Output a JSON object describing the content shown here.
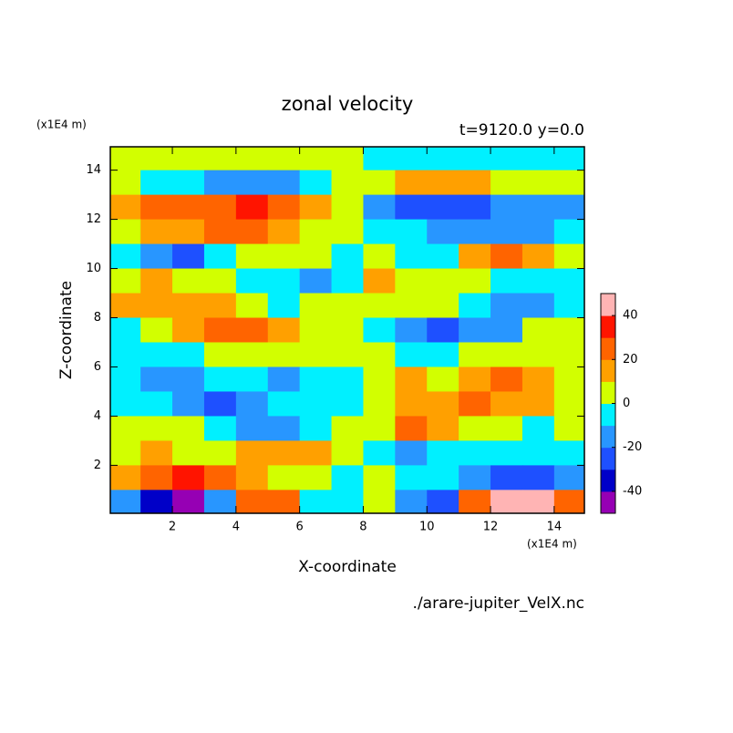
{
  "chart_data": {
    "type": "contour",
    "title": "zonal velocity",
    "subtitle": "t=9120.0 y=0.0",
    "x_label": "X-coordinate",
    "y_label": "Z-coordinate",
    "x_unit": "(x1E4 m)",
    "y_unit": "(x1E4 m)",
    "annotation": "./arare-jupiter_VelX.nc",
    "x": [
      0.5,
      1.5,
      2.5,
      3.5,
      4.5,
      5.5,
      6.5,
      7.5,
      8.5,
      9.5,
      10.5,
      11.5,
      12.5,
      13.5,
      14.5
    ],
    "y": [
      14.5,
      13.5,
      12.5,
      11.5,
      10.5,
      9.5,
      8.5,
      7.5,
      6.5,
      5.5,
      4.5,
      3.5,
      2.5,
      1.5,
      0.5
    ],
    "values": [
      [
        5,
        5,
        5,
        5,
        5,
        5,
        5,
        5,
        -5,
        -5,
        -5,
        -5,
        -5,
        -5,
        -5
      ],
      [
        0,
        -5,
        -5,
        -15,
        -15,
        -15,
        -5,
        0,
        5,
        15,
        15,
        15,
        5,
        5,
        0
      ],
      [
        15,
        20,
        20,
        25,
        30,
        25,
        15,
        5,
        -15,
        -25,
        -30,
        -25,
        -20,
        -20,
        -15
      ],
      [
        5,
        15,
        15,
        20,
        20,
        10,
        5,
        0,
        -5,
        -10,
        -20,
        -20,
        -15,
        -15,
        -5
      ],
      [
        -5,
        -15,
        -25,
        -10,
        5,
        5,
        0,
        -5,
        0,
        -5,
        -5,
        10,
        25,
        15,
        5
      ],
      [
        5,
        10,
        5,
        0,
        -5,
        -5,
        -15,
        -5,
        15,
        5,
        5,
        0,
        -5,
        -10,
        -5
      ],
      [
        10,
        15,
        15,
        10,
        0,
        -5,
        0,
        5,
        0,
        5,
        0,
        -10,
        -15,
        -15,
        -10
      ],
      [
        -5,
        0,
        15,
        20,
        25,
        15,
        5,
        0,
        -5,
        -15,
        -25,
        -20,
        -15,
        0,
        5
      ],
      [
        -5,
        -5,
        -5,
        0,
        5,
        5,
        0,
        0,
        0,
        -5,
        -5,
        0,
        5,
        5,
        5
      ],
      [
        -5,
        -15,
        -20,
        -10,
        -5,
        -15,
        -5,
        -5,
        5,
        15,
        5,
        10,
        20,
        15,
        5
      ],
      [
        -5,
        -10,
        -15,
        -25,
        -15,
        -10,
        -5,
        -5,
        5,
        10,
        15,
        25,
        15,
        10,
        5
      ],
      [
        0,
        5,
        0,
        -5,
        -15,
        -20,
        -5,
        5,
        5,
        20,
        15,
        5,
        0,
        -5,
        0
      ],
      [
        5,
        10,
        5,
        5,
        10,
        15,
        10,
        5,
        -10,
        -15,
        -10,
        -5,
        -5,
        -10,
        -5
      ],
      [
        15,
        25,
        30,
        20,
        10,
        5,
        0,
        -5,
        0,
        -5,
        -10,
        -20,
        -30,
        -25,
        -15
      ],
      [
        -20,
        -40,
        -45,
        -20,
        25,
        20,
        -5,
        -10,
        5,
        -20,
        -25,
        20,
        45,
        40,
        20
      ]
    ],
    "xlim": [
      0.05,
      14.95
    ],
    "ylim": [
      0.05,
      14.95
    ],
    "xticks": [
      2,
      4,
      6,
      8,
      10,
      12,
      14
    ],
    "yticks": [
      2,
      4,
      6,
      8,
      10,
      12,
      14
    ],
    "levels": [
      -50,
      -40,
      -30,
      -20,
      -10,
      0,
      10,
      20,
      30,
      40,
      50
    ],
    "colors": [
      "#9600b4",
      "#0000c8",
      "#1e50ff",
      "#2896ff",
      "#00f0ff",
      "#d2ff00",
      "#ffa000",
      "#ff6400",
      "#ff1400",
      "#ffb4b4"
    ],
    "colorbar_ticks": [
      -40,
      -20,
      0,
      20,
      40
    ]
  }
}
